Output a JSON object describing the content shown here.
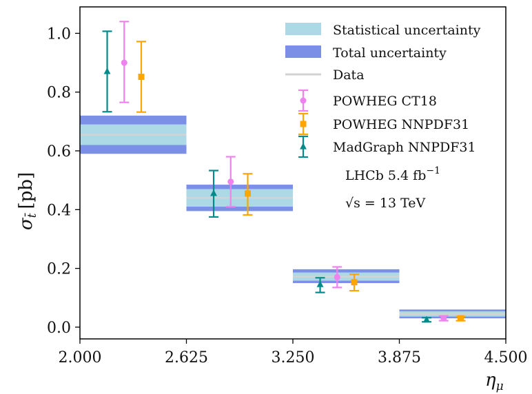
{
  "chart_data": {
    "type": "scatter",
    "xlabel": "η",
    "xlabel_sub": "μ",
    "ylabel": "σ",
    "ylabel_sub": "t̄",
    "ylabel_unit": "[pb]",
    "xlim": [
      2.0,
      4.5
    ],
    "ylim": [
      -0.04,
      1.09
    ],
    "x_ticks": [
      2.0,
      2.625,
      3.25,
      3.875,
      4.5
    ],
    "x_tick_labels": [
      "2.000",
      "2.625",
      "3.250",
      "3.875",
      "4.500"
    ],
    "y_ticks": [
      0.0,
      0.2,
      0.4,
      0.6,
      0.8,
      1.0
    ],
    "y_tick_labels": [
      "0.0",
      "0.2",
      "0.4",
      "0.6",
      "0.8",
      "1.0"
    ],
    "legend_position": "top-right",
    "bins": [
      {
        "x_low": 2.0,
        "x_high": 2.625,
        "data": 0.655,
        "stat_low": 0.62,
        "stat_high": 0.69,
        "total_low": 0.59,
        "total_high": 0.72
      },
      {
        "x_low": 2.625,
        "x_high": 3.25,
        "data": 0.44,
        "stat_low": 0.41,
        "stat_high": 0.47,
        "total_low": 0.395,
        "total_high": 0.485
      },
      {
        "x_low": 3.25,
        "x_high": 3.875,
        "data": 0.172,
        "stat_low": 0.158,
        "stat_high": 0.186,
        "total_low": 0.15,
        "total_high": 0.197
      },
      {
        "x_low": 3.875,
        "x_high": 4.5,
        "data": 0.045,
        "stat_low": 0.036,
        "stat_high": 0.054,
        "total_low": 0.03,
        "total_high": 0.06
      }
    ],
    "series": [
      {
        "name": "POWHEG CT18",
        "marker": "circle",
        "color": "#ee82ee",
        "x": [
          2.26,
          2.885,
          3.51,
          4.135
        ],
        "y": [
          0.9,
          0.495,
          0.17,
          0.03
        ],
        "err_low": [
          0.765,
          0.41,
          0.135,
          0.022
        ],
        "err_high": [
          1.04,
          0.58,
          0.205,
          0.038
        ]
      },
      {
        "name": "POWHEG NNPDF31",
        "marker": "square",
        "color": "#ffa500",
        "x": [
          2.36,
          2.985,
          3.61,
          4.235
        ],
        "y": [
          0.852,
          0.455,
          0.153,
          0.03
        ],
        "err_low": [
          0.732,
          0.382,
          0.124,
          0.022
        ],
        "err_high": [
          0.972,
          0.522,
          0.18,
          0.036
        ]
      },
      {
        "name": "MadGraph NNPDF31",
        "marker": "triangle",
        "color": "#008b8b",
        "x": [
          2.16,
          2.785,
          3.41,
          4.035
        ],
        "y": [
          0.87,
          0.455,
          0.145,
          0.025
        ],
        "err_low": [
          0.733,
          0.375,
          0.118,
          0.018
        ],
        "err_high": [
          1.007,
          0.533,
          0.168,
          0.032
        ]
      }
    ],
    "legend": {
      "stat_label": "Statistical uncertainty",
      "total_label": "Total uncertainty",
      "data_label": "Data"
    },
    "annotations": {
      "lumi": "LHCb 5.4 fb",
      "lumi_sup": "−1",
      "energy": "√s = 13 TeV"
    }
  },
  "colors": {
    "stat_band": "#add8e6",
    "total_band": "#7b8fe6",
    "data_line": "#d3d3d3"
  }
}
